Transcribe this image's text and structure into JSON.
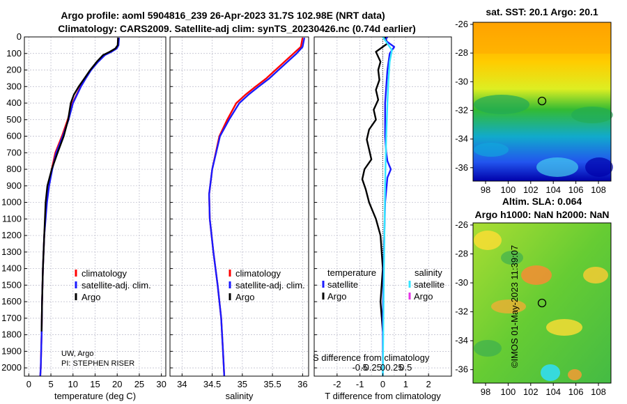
{
  "header": {
    "title_line1": "Argo profile: aoml 5904816_239 26-Apr-2023 31.7S 102.98E (NRT data)",
    "title_line2": "Climatology: CARS2009. Satellite-adj clim: synTS_20230426.nc (0.74d earlier)"
  },
  "credit": {
    "institution": "UW, Argo",
    "pi": "PI: STEPHEN RISER",
    "imos_stamp": "©IMOS 01-May-2023 11:39:07"
  },
  "colors": {
    "climatology": "#ff0000",
    "satellite_adj": "#1a1aff",
    "argo": "#000000",
    "salinity_satellite": "#33e6ff",
    "salinity_argo": "#e633e6",
    "grid": "#b8b8c8"
  },
  "chart_data": [
    {
      "id": "temperature",
      "type": "line",
      "xlabel": "temperature (deg C)",
      "ylabel": "",
      "xlim": [
        -1,
        31
      ],
      "ylim": [
        2050,
        0
      ],
      "xticks": [
        0,
        5,
        10,
        15,
        20,
        25,
        30
      ],
      "yticks": [
        0,
        100,
        200,
        300,
        400,
        500,
        600,
        700,
        800,
        900,
        1000,
        1100,
        1200,
        1300,
        1400,
        1500,
        1600,
        1700,
        1800,
        1900,
        2000
      ],
      "legend": [
        "climatology",
        "satellite-adj. clim.",
        "Argo"
      ],
      "series": [
        {
          "name": "climatology",
          "color": "#ff0000",
          "x": [
            20.2,
            20.2,
            19.8,
            18.5,
            17.0,
            15.5,
            14.0,
            12.8,
            11.7,
            10.8,
            9.9,
            8.8,
            7.5,
            6.0,
            5.2,
            4.5,
            4.0,
            3.5,
            3.2,
            3.0,
            2.9,
            2.8,
            2.7,
            2.6
          ],
          "y": [
            5,
            50,
            70,
            90,
            110,
            150,
            200,
            250,
            300,
            350,
            400,
            500,
            600,
            700,
            800,
            900,
            1000,
            1200,
            1400,
            1600,
            1800,
            1900,
            2000,
            2050
          ]
        },
        {
          "name": "satellite-adj. clim.",
          "color": "#1a1aff",
          "x": [
            20.4,
            20.3,
            19.9,
            18.7,
            17.2,
            15.7,
            14.1,
            12.9,
            11.8,
            10.9,
            10.0,
            9.0,
            7.7,
            6.2,
            5.3,
            4.6,
            4.1,
            3.5,
            3.2,
            3.0,
            2.9,
            2.8,
            2.7,
            2.6
          ],
          "y": [
            5,
            50,
            70,
            90,
            110,
            150,
            200,
            250,
            300,
            350,
            400,
            500,
            600,
            700,
            800,
            900,
            1000,
            1200,
            1400,
            1600,
            1800,
            1900,
            2000,
            2050
          ]
        },
        {
          "name": "Argo",
          "color": "#000000",
          "x": [
            20.2,
            20.1,
            19.6,
            18.3,
            16.8,
            15.4,
            13.9,
            12.6,
            11.3,
            10.2,
            9.5,
            8.9,
            7.9,
            6.5,
            5.2,
            4.2,
            3.8,
            3.5,
            3.2,
            3.0,
            2.9
          ],
          "y": [
            5,
            50,
            70,
            90,
            110,
            150,
            200,
            250,
            300,
            350,
            400,
            500,
            600,
            700,
            800,
            900,
            1000,
            1200,
            1400,
            1600,
            1780
          ]
        }
      ]
    },
    {
      "id": "salinity",
      "type": "line",
      "xlabel": "salinity",
      "xlim": [
        33.8,
        36.1
      ],
      "ylim": [
        2050,
        0
      ],
      "xticks": [
        34,
        34.5,
        35,
        35.5,
        36
      ],
      "xtick_labels": [
        "34",
        "34.5",
        "35",
        "35.5",
        "36"
      ],
      "legend": [
        "climatology",
        "satellite-adj. clim.",
        "Argo"
      ],
      "series": [
        {
          "name": "climatology",
          "color": "#ff0000",
          "x": [
            36.0,
            35.97,
            35.85,
            35.7,
            35.55,
            35.4,
            35.22,
            35.05,
            34.9,
            34.75,
            34.62,
            34.5,
            34.45,
            34.46,
            34.52,
            34.59,
            34.65,
            34.68,
            34.7
          ],
          "y": [
            5,
            60,
            100,
            150,
            200,
            250,
            300,
            350,
            400,
            500,
            600,
            800,
            950,
            1100,
            1300,
            1500,
            1700,
            1900,
            2050
          ]
        },
        {
          "name": "satellite-adj. clim.",
          "color": "#1a1aff",
          "x": [
            36.03,
            36.0,
            35.9,
            35.75,
            35.6,
            35.45,
            35.27,
            35.1,
            34.95,
            34.78,
            34.63,
            34.5,
            34.45,
            34.46,
            34.52,
            34.59,
            34.65,
            34.68,
            34.7
          ],
          "y": [
            5,
            60,
            100,
            150,
            200,
            250,
            300,
            350,
            400,
            500,
            600,
            800,
            950,
            1100,
            1300,
            1500,
            1700,
            1900,
            2050
          ]
        }
      ]
    },
    {
      "id": "difference",
      "type": "line",
      "xlabel": "T difference from climatology",
      "top_xlabel": "S difference from climatology",
      "xlim": [
        -3,
        3
      ],
      "ylim": [
        2050,
        0
      ],
      "xticks": [
        -2,
        -1,
        0,
        1,
        2
      ],
      "xtick_labels": [
        "-2",
        "-1",
        "0",
        "1",
        "2"
      ],
      "top_ticks": [
        -1,
        -0.5,
        0,
        0.5,
        1
      ],
      "top_tick_labels": [
        "-0.5",
        "-0.25",
        "0",
        "0.25",
        "0.5"
      ],
      "legend_titles": [
        "temperature",
        "salinity"
      ],
      "legend": [
        "satellite",
        "Argo",
        "satellite",
        "Argo"
      ],
      "series": [
        {
          "name": "T Argo",
          "color": "#000000",
          "x": [
            0.1,
            0.2,
            -0.3,
            -0.1,
            -0.2,
            -0.15,
            -0.3,
            -0.2,
            -0.4,
            -0.3,
            -0.6,
            -0.7,
            -0.6,
            -0.5,
            -0.8,
            -0.9,
            -0.75,
            -0.6,
            -0.3,
            -0.1,
            0.0,
            -0.1,
            0.0
          ],
          "y": [
            0,
            40,
            90,
            150,
            200,
            260,
            320,
            380,
            440,
            500,
            560,
            620,
            680,
            740,
            800,
            860,
            920,
            1000,
            1100,
            1200,
            1400,
            1600,
            1780
          ]
        },
        {
          "name": "T satellite",
          "color": "#1a1aff",
          "x": [
            0.2,
            0.1,
            0.5,
            0.3,
            0.2,
            0.15,
            0.1,
            0.1,
            0.1,
            0.15,
            0.2,
            0.35,
            0.2,
            0.1,
            0.05,
            0.0,
            0.0
          ],
          "y": [
            0,
            20,
            60,
            100,
            200,
            300,
            400,
            500,
            600,
            700,
            750,
            800,
            850,
            1000,
            1300,
            1700,
            2050
          ]
        },
        {
          "name": "S satellite",
          "color": "#33e6ff",
          "x": [
            0.0,
            0.4,
            0.3,
            0.25,
            0.2,
            0.15,
            0.1,
            0.05,
            0.0
          ],
          "y": [
            0,
            80,
            150,
            250,
            400,
            600,
            900,
            1400,
            2050
          ]
        }
      ]
    }
  ]
}
